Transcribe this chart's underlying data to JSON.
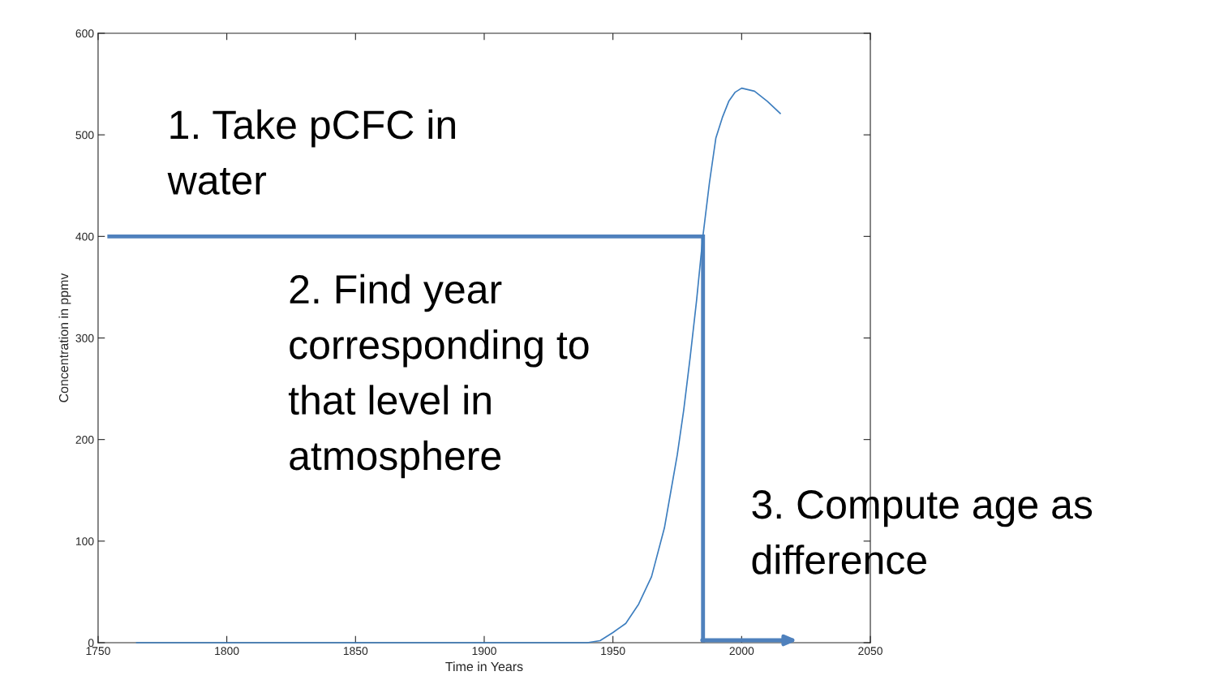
{
  "chart_data": {
    "type": "line",
    "xlabel": "Time in Years",
    "ylabel": "Concentration in ppmv",
    "x": [
      1765,
      1800,
      1850,
      1900,
      1940,
      1945,
      1950,
      1955,
      1960,
      1965,
      1970,
      1972.5,
      1975,
      1977.5,
      1980,
      1982.5,
      1985,
      1987.5,
      1990,
      1992.5,
      1995,
      1997.5,
      2000,
      2005,
      2010,
      2015
    ],
    "series": [
      {
        "color": "#3d7ebf",
        "values": [
          0,
          0,
          0,
          0,
          0,
          2,
          10,
          19,
          38,
          65,
          113,
          149,
          185,
          229,
          281,
          337,
          401,
          453,
          497,
          517,
          533,
          542,
          546,
          543,
          533,
          521
        ]
      }
    ],
    "xlim": [
      1750,
      2050
    ],
    "xticks": [
      1750,
      1800,
      1850,
      1900,
      1950,
      2000,
      2050
    ],
    "ylim": [
      0,
      600
    ],
    "yticks": [
      0,
      100,
      200,
      300,
      400,
      500,
      600
    ],
    "ref_lines": [
      {
        "axis": "y",
        "value": 400,
        "label": null,
        "color": "#4f81bd"
      },
      {
        "axis": "x",
        "value": 1985,
        "label": null,
        "color": "#4f81bd"
      }
    ],
    "annotations": [
      "1. Take pCFC in\nwater",
      "2. Find year\ncorresponding to\nthat level in\natmosphere",
      "3. Compute age as\ndifference"
    ],
    "grid": false,
    "legend": false
  }
}
